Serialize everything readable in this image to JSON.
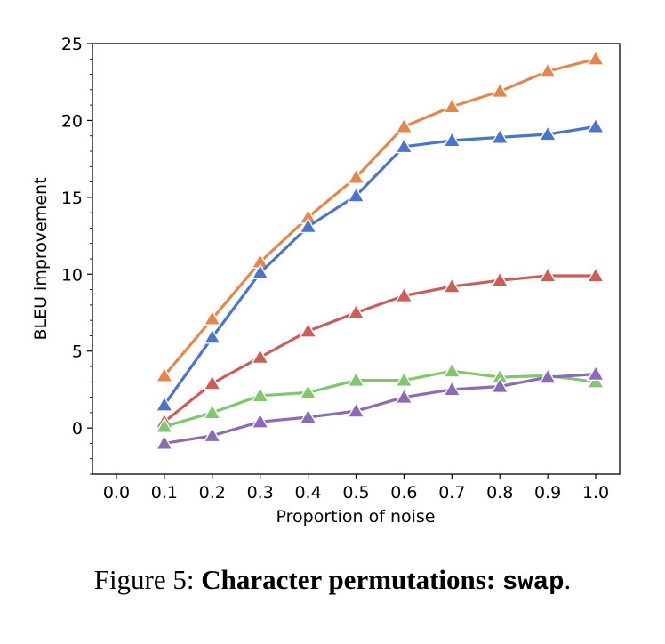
{
  "chart_data": {
    "type": "line",
    "xlabel": "Proportion of noise",
    "ylabel": "BLEU improvement",
    "x_ticks": [
      "0.0",
      "0.1",
      "0.2",
      "0.3",
      "0.4",
      "0.5",
      "0.6",
      "0.7",
      "0.8",
      "0.9",
      "1.0"
    ],
    "y_ticks": [
      "0",
      "5",
      "10",
      "15",
      "20",
      "25"
    ],
    "xlim": [
      -0.05,
      1.05
    ],
    "ylim": [
      -3,
      25
    ],
    "grid": false,
    "marker": "triangle",
    "x": [
      0.1,
      0.2,
      0.3,
      0.4,
      0.5,
      0.6,
      0.7,
      0.8,
      0.9,
      1.0
    ],
    "series": [
      {
        "color": "#e1874f",
        "values": [
          3.4,
          7.1,
          10.8,
          13.7,
          16.3,
          19.6,
          20.9,
          21.9,
          23.2,
          24.0
        ]
      },
      {
        "color": "#4c74c9",
        "values": [
          1.5,
          5.9,
          10.1,
          13.1,
          15.1,
          18.3,
          18.7,
          18.9,
          19.1,
          19.6
        ]
      },
      {
        "color": "#c95f5b",
        "values": [
          0.4,
          2.9,
          4.6,
          6.3,
          7.5,
          8.6,
          9.2,
          9.6,
          9.9,
          9.9
        ]
      },
      {
        "color": "#82c66f",
        "values": [
          0.1,
          1.0,
          2.1,
          2.3,
          3.1,
          3.1,
          3.7,
          3.3,
          3.4,
          3.0
        ]
      },
      {
        "color": "#8b6bb5",
        "values": [
          -1.0,
          -0.5,
          0.4,
          0.7,
          1.1,
          2.0,
          2.5,
          2.7,
          3.3,
          3.5
        ]
      }
    ]
  },
  "caption": {
    "prefix": "Figure 5: ",
    "bold": "Character permutations: ",
    "code": "swap",
    "suffix": "."
  }
}
